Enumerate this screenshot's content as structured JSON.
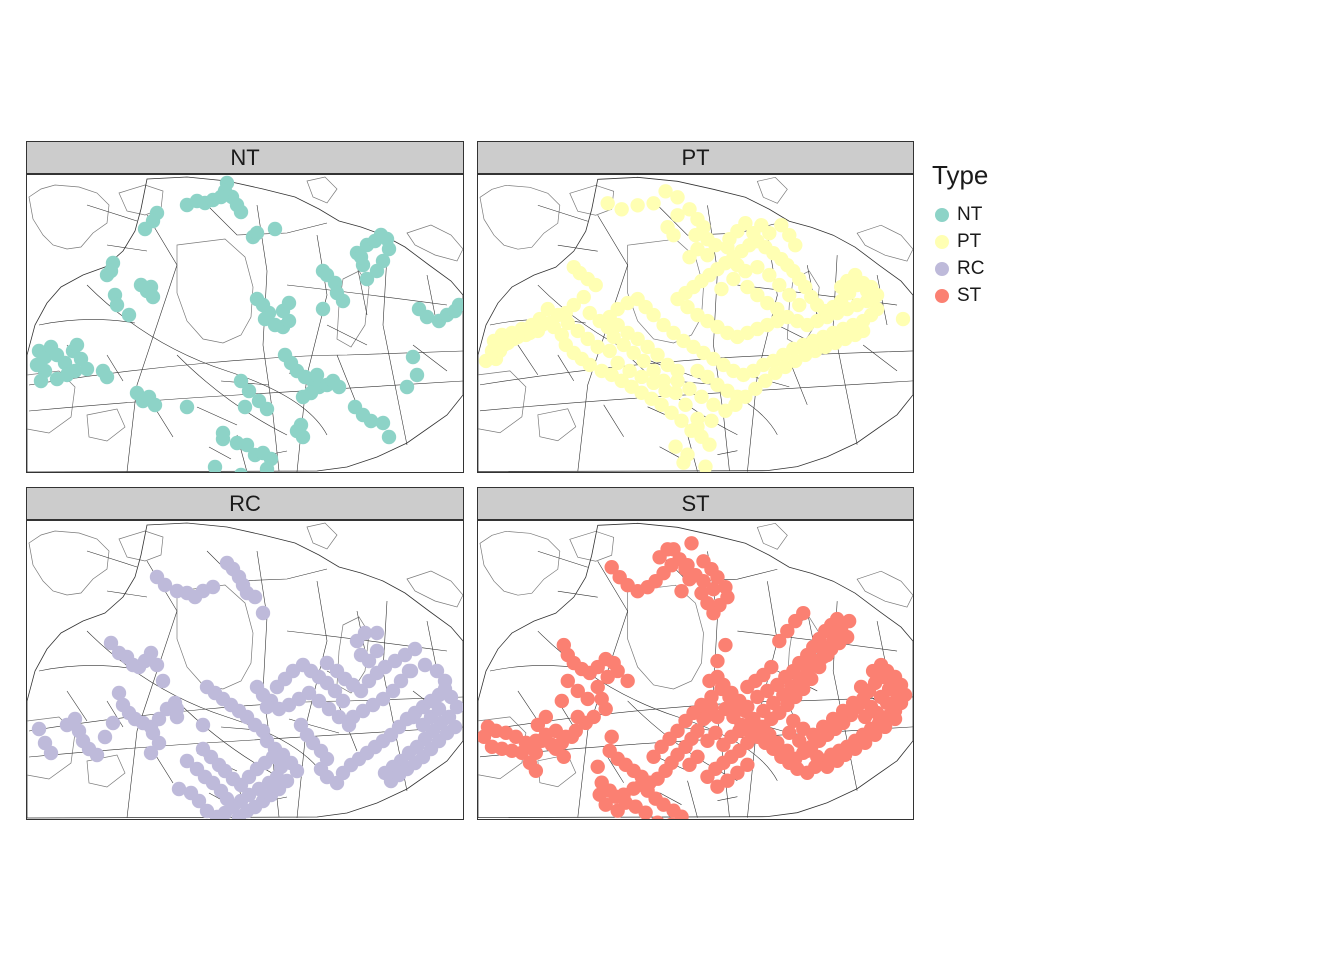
{
  "legend": {
    "title": "Type",
    "items": [
      {
        "label": "NT",
        "color": "#8dd3c7"
      },
      {
        "label": "PT",
        "color": "#ffffb3"
      },
      {
        "label": "RC",
        "color": "#bebada"
      },
      {
        "label": "ST",
        "color": "#fb8072"
      }
    ]
  },
  "panels": [
    {
      "label": "NT",
      "color": "#8dd3c7"
    },
    {
      "label": "PT",
      "color": "#ffffb3"
    },
    {
      "label": "RC",
      "color": "#bebada"
    },
    {
      "label": "ST",
      "color": "#fb8072"
    }
  ],
  "colors": {
    "boundary": "#333333",
    "coast": "#7a7a7a",
    "strip": "#cccccc"
  }
}
